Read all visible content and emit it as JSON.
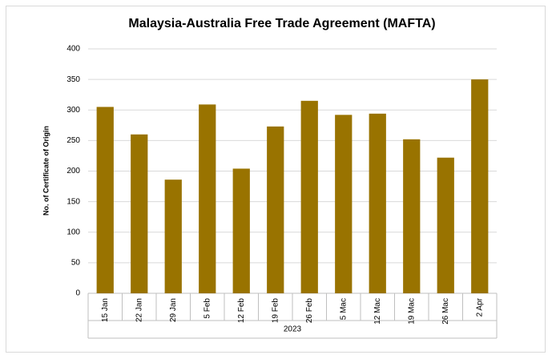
{
  "chart_data": {
    "type": "bar",
    "title": "Malaysia-Australia Free Trade Agreement (MAFTA)",
    "ylabel": "No. of Certificate of Origin",
    "xgroup": "2023",
    "categories": [
      "15 Jan",
      "22 Jan",
      "29 Jan",
      "5 Feb",
      "12 Feb",
      "19 Feb",
      "26 Feb",
      "5 Mac",
      "12 Mac",
      "19 Mac",
      "26 Mac",
      "2 Apr"
    ],
    "values": [
      305,
      260,
      186,
      309,
      204,
      273,
      315,
      292,
      294,
      252,
      222,
      350
    ],
    "color": "#997300",
    "ylim": [
      0,
      400
    ],
    "yticks": [
      0,
      50,
      100,
      150,
      200,
      250,
      300,
      350,
      400
    ],
    "grid": true
  }
}
